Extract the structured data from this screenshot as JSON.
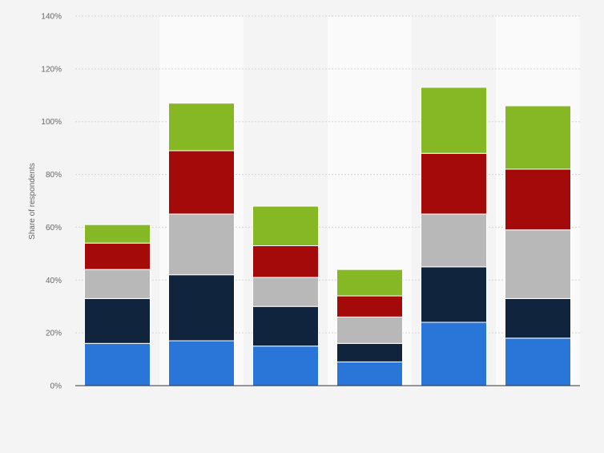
{
  "chart_data": {
    "type": "bar",
    "stacked": true,
    "categories": [
      "",
      "",
      "",
      "",
      "",
      ""
    ],
    "series": [
      {
        "color": "#2a75d8",
        "values": [
          16,
          17,
          15,
          9,
          24,
          18
        ]
      },
      {
        "color": "#10253d",
        "values": [
          17,
          25,
          15,
          7,
          21,
          15
        ]
      },
      {
        "color": "#b8b8b8",
        "values": [
          11,
          23,
          11,
          10,
          20,
          26
        ]
      },
      {
        "color": "#a40a0a",
        "values": [
          10,
          24,
          12,
          8,
          23,
          23
        ]
      },
      {
        "color": "#86b826",
        "values": [
          7,
          18,
          15,
          10,
          25,
          24
        ]
      }
    ],
    "title": "",
    "xlabel": "",
    "ylabel": "Share of respondents",
    "ylim": [
      0,
      140
    ],
    "yticks": [
      0,
      20,
      40,
      60,
      80,
      100,
      120,
      140
    ],
    "ytick_labels": [
      "0%",
      "20%",
      "40%",
      "60%",
      "80%",
      "100%",
      "120%",
      "140%"
    ],
    "grid": true,
    "legend": "none"
  }
}
